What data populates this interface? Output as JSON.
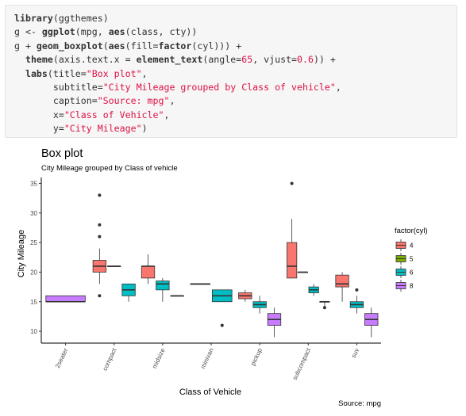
{
  "code": {
    "lines": [
      [
        {
          "t": "library",
          "c": "fn"
        },
        {
          "t": "(ggthemes)"
        }
      ],
      [
        {
          "t": "g <- "
        },
        {
          "t": "ggplot",
          "c": "fn"
        },
        {
          "t": "(mpg, "
        },
        {
          "t": "aes",
          "c": "fn"
        },
        {
          "t": "(class, cty))"
        }
      ],
      [
        {
          "t": "g + "
        },
        {
          "t": "geom_boxplot",
          "c": "fn"
        },
        {
          "t": "("
        },
        {
          "t": "aes",
          "c": "fn"
        },
        {
          "t": "(fill="
        },
        {
          "t": "factor",
          "c": "fn"
        },
        {
          "t": "(cyl))) +"
        }
      ],
      [
        {
          "t": "  "
        },
        {
          "t": "theme",
          "c": "fn"
        },
        {
          "t": "(axis.text.x = "
        },
        {
          "t": "element_text",
          "c": "fn"
        },
        {
          "t": "(angle="
        },
        {
          "t": "65",
          "c": "str"
        },
        {
          "t": ", vjust="
        },
        {
          "t": "0.6",
          "c": "str"
        },
        {
          "t": ")) +"
        }
      ],
      [
        {
          "t": "  "
        },
        {
          "t": "labs",
          "c": "fn"
        },
        {
          "t": "(title="
        },
        {
          "t": "\"Box plot\"",
          "c": "str"
        },
        {
          "t": ","
        }
      ],
      [
        {
          "t": "       subtitle="
        },
        {
          "t": "\"City Mileage grouped by Class of vehicle\"",
          "c": "str"
        },
        {
          "t": ","
        }
      ],
      [
        {
          "t": "       caption="
        },
        {
          "t": "\"Source: mpg\"",
          "c": "str"
        },
        {
          "t": ","
        }
      ],
      [
        {
          "t": "       x="
        },
        {
          "t": "\"Class of Vehicle\"",
          "c": "str"
        },
        {
          "t": ","
        }
      ],
      [
        {
          "t": "       y="
        },
        {
          "t": "\"City Mileage\"",
          "c": "str"
        },
        {
          "t": ")"
        }
      ]
    ]
  },
  "chart_data": {
    "type": "box",
    "title": "Box plot",
    "subtitle": "City Mileage grouped by Class of vehicle",
    "caption": "Source: mpg",
    "xlabel": "Class of Vehicle",
    "ylabel": "City Mileage",
    "categories": [
      "2seater",
      "compact",
      "midsize",
      "minivan",
      "pickup",
      "subcompact",
      "suv"
    ],
    "ylim": [
      8,
      36
    ],
    "yticks": [
      10,
      15,
      20,
      25,
      30,
      35
    ],
    "grid": false,
    "legend": {
      "title": "factor(cyl)",
      "entries": [
        "4",
        "5",
        "6",
        "8"
      ],
      "colors": {
        "4": "#F8766D",
        "5": "#7CAE00",
        "6": "#00BFC4",
        "8": "#C77CFF"
      },
      "placement": "right"
    },
    "boxes": [
      {
        "category": "2seater",
        "cyl": "8",
        "min": 15,
        "q1": 15,
        "median": 15,
        "q3": 16,
        "max": 16,
        "outliers": []
      },
      {
        "category": "compact",
        "cyl": "4",
        "min": 18,
        "q1": 20,
        "median": 21,
        "q3": 22,
        "max": 24,
        "outliers": [
          33,
          28,
          26,
          16
        ]
      },
      {
        "category": "compact",
        "cyl": "5",
        "min": 21,
        "q1": 21,
        "median": 21,
        "q3": 21,
        "max": 21,
        "outliers": []
      },
      {
        "category": "compact",
        "cyl": "6",
        "min": 15,
        "q1": 16,
        "median": 17,
        "q3": 18,
        "max": 18,
        "outliers": []
      },
      {
        "category": "midsize",
        "cyl": "4",
        "min": 18,
        "q1": 19,
        "median": 21,
        "q3": 21,
        "max": 23,
        "outliers": []
      },
      {
        "category": "midsize",
        "cyl": "6",
        "min": 15,
        "q1": 17,
        "median": 18,
        "q3": 18.5,
        "max": 19,
        "outliers": []
      },
      {
        "category": "midsize",
        "cyl": "8",
        "min": 16,
        "q1": 16,
        "median": 16,
        "q3": 16,
        "max": 16,
        "outliers": []
      },
      {
        "category": "minivan",
        "cyl": "4",
        "min": 18,
        "q1": 18,
        "median": 18,
        "q3": 18,
        "max": 18,
        "outliers": []
      },
      {
        "category": "minivan",
        "cyl": "6",
        "min": 15,
        "q1": 15,
        "median": 16,
        "q3": 17,
        "max": 17,
        "outliers": [
          11
        ]
      },
      {
        "category": "pickup",
        "cyl": "4",
        "min": 15,
        "q1": 15.5,
        "median": 16,
        "q3": 16.5,
        "max": 17,
        "outliers": []
      },
      {
        "category": "pickup",
        "cyl": "6",
        "min": 13,
        "q1": 14,
        "median": 14.5,
        "q3": 15,
        "max": 16,
        "outliers": []
      },
      {
        "category": "pickup",
        "cyl": "8",
        "min": 9,
        "q1": 11,
        "median": 12,
        "q3": 13,
        "max": 14,
        "outliers": []
      },
      {
        "category": "subcompact",
        "cyl": "4",
        "min": 19,
        "q1": 19,
        "median": 21,
        "q3": 25,
        "max": 29,
        "outliers": [
          35
        ]
      },
      {
        "category": "subcompact",
        "cyl": "5",
        "min": 20,
        "q1": 20,
        "median": 20,
        "q3": 20,
        "max": 20,
        "outliers": []
      },
      {
        "category": "subcompact",
        "cyl": "6",
        "min": 16,
        "q1": 16.5,
        "median": 17,
        "q3": 17.5,
        "max": 18,
        "outliers": []
      },
      {
        "category": "subcompact",
        "cyl": "8",
        "min": 14,
        "q1": 15,
        "median": 15,
        "q3": 15,
        "max": 15,
        "outliers": [
          14
        ]
      },
      {
        "category": "suv",
        "cyl": "4",
        "min": 15,
        "q1": 17.5,
        "median": 18,
        "q3": 19.5,
        "max": 20,
        "outliers": []
      },
      {
        "category": "suv",
        "cyl": "6",
        "min": 13,
        "q1": 14,
        "median": 14.5,
        "q3": 15,
        "max": 16,
        "outliers": [
          17
        ]
      },
      {
        "category": "suv",
        "cyl": "8",
        "min": 9,
        "q1": 11,
        "median": 12,
        "q3": 13,
        "max": 14,
        "outliers": []
      }
    ]
  }
}
